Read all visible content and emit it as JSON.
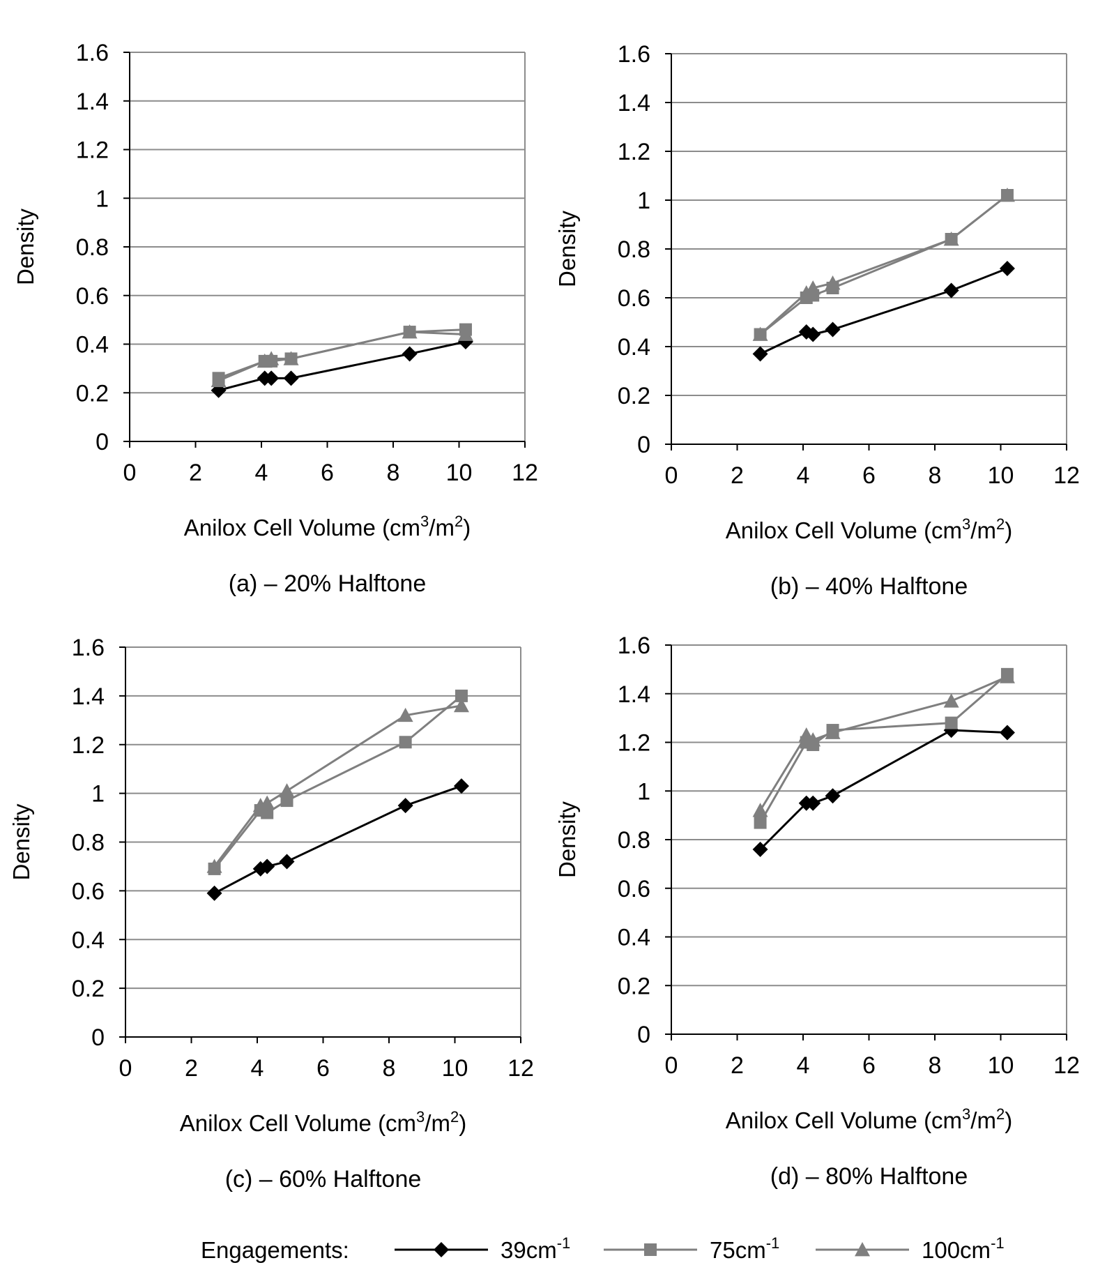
{
  "colors": {
    "series_39": "#000000",
    "series_75": "#7f7f7f",
    "series_100": "#7f7f7f",
    "grid": "#8c8c8c",
    "frame": "#8c8c8c"
  },
  "legend": {
    "label": "Engagements:",
    "items": [
      {
        "text": "39cm",
        "sup": "-1",
        "marker": "diamond",
        "color": "#000000"
      },
      {
        "text": "75cm",
        "sup": "-1",
        "marker": "square",
        "color": "#7f7f7f"
      },
      {
        "text": "100cm",
        "sup": "-1",
        "marker": "triangle",
        "color": "#7f7f7f"
      }
    ]
  },
  "chart_data": [
    {
      "type": "line",
      "caption": "(a) – 20% Halftone",
      "xlabel": "Anilox Cell Volume (cm3/m2)",
      "ylabel": "Density",
      "xlim": [
        0,
        12
      ],
      "ylim": [
        0,
        1.6
      ],
      "xticks": [
        "0",
        "2",
        "4",
        "6",
        "8",
        "10",
        "12"
      ],
      "yticks": [
        "0",
        "0.2",
        "0.4",
        "0.6",
        "0.8",
        "1",
        "1.2",
        "1.4",
        "1.6"
      ],
      "grid": true,
      "series": [
        {
          "name": "39cm-1",
          "marker": "diamond",
          "x": [
            2.7,
            4.1,
            4.3,
            4.9,
            8.5,
            10.2
          ],
          "y": [
            0.21,
            0.26,
            0.26,
            0.26,
            0.36,
            0.41
          ]
        },
        {
          "name": "75cm-1",
          "marker": "square",
          "x": [
            2.7,
            4.1,
            4.3,
            4.9,
            8.5,
            10.2
          ],
          "y": [
            0.26,
            0.33,
            0.33,
            0.34,
            0.45,
            0.46
          ]
        },
        {
          "name": "100cm-1",
          "marker": "triangle",
          "x": [
            2.7,
            4.1,
            4.3,
            4.9,
            8.5,
            10.2
          ],
          "y": [
            0.25,
            0.33,
            0.34,
            0.34,
            0.45,
            0.44
          ]
        }
      ]
    },
    {
      "type": "line",
      "caption": "(b) – 40% Halftone",
      "xlabel": "Anilox Cell Volume (cm3/m2)",
      "ylabel": "Density",
      "xlim": [
        0,
        12
      ],
      "ylim": [
        0,
        1.6
      ],
      "xticks": [
        "0",
        "2",
        "4",
        "6",
        "8",
        "10",
        "12"
      ],
      "yticks": [
        "0",
        "0.2",
        "0.4",
        "0.6",
        "0.8",
        "1",
        "1.2",
        "1.4",
        "1.6"
      ],
      "grid": true,
      "series": [
        {
          "name": "39cm-1",
          "marker": "diamond",
          "x": [
            2.7,
            4.1,
            4.3,
            4.9,
            8.5,
            10.2
          ],
          "y": [
            0.37,
            0.46,
            0.45,
            0.47,
            0.63,
            0.72
          ]
        },
        {
          "name": "75cm-1",
          "marker": "square",
          "x": [
            2.7,
            4.1,
            4.3,
            4.9,
            8.5,
            10.2
          ],
          "y": [
            0.45,
            0.6,
            0.61,
            0.64,
            0.84,
            1.02
          ]
        },
        {
          "name": "100cm-1",
          "marker": "triangle",
          "x": [
            2.7,
            4.1,
            4.3,
            4.9,
            8.5,
            10.2
          ],
          "y": [
            0.45,
            0.62,
            0.64,
            0.66,
            0.84,
            1.02
          ]
        }
      ]
    },
    {
      "type": "line",
      "caption": "(c) – 60% Halftone",
      "xlabel": "Anilox Cell Volume (cm3/m2)",
      "ylabel": "Density",
      "xlim": [
        0,
        12
      ],
      "ylim": [
        0,
        1.6
      ],
      "xticks": [
        "0",
        "2",
        "4",
        "6",
        "8",
        "10",
        "12"
      ],
      "yticks": [
        "0",
        "0.2",
        "0.4",
        "0.6",
        "0.8",
        "1",
        "1.2",
        "1.4",
        "1.6"
      ],
      "grid": true,
      "series": [
        {
          "name": "39cm-1",
          "marker": "diamond",
          "x": [
            2.7,
            4.1,
            4.3,
            4.9,
            8.5,
            10.2
          ],
          "y": [
            0.59,
            0.69,
            0.7,
            0.72,
            0.95,
            1.03
          ]
        },
        {
          "name": "75cm-1",
          "marker": "square",
          "x": [
            2.7,
            4.1,
            4.3,
            4.9,
            8.5,
            10.2
          ],
          "y": [
            0.69,
            0.93,
            0.92,
            0.97,
            1.21,
            1.4
          ]
        },
        {
          "name": "100cm-1",
          "marker": "triangle",
          "x": [
            2.7,
            4.1,
            4.3,
            4.9,
            8.5,
            10.2
          ],
          "y": [
            0.7,
            0.95,
            0.96,
            1.01,
            1.32,
            1.36
          ]
        }
      ]
    },
    {
      "type": "line",
      "caption": "(d) – 80% Halftone",
      "xlabel": "Anilox Cell Volume (cm3/m2)",
      "ylabel": "Density",
      "xlim": [
        0,
        12
      ],
      "ylim": [
        0,
        1.6
      ],
      "xticks": [
        "0",
        "2",
        "4",
        "6",
        "8",
        "10",
        "12"
      ],
      "yticks": [
        "0",
        "0.2",
        "0.4",
        "0.6",
        "0.8",
        "1",
        "1.2",
        "1.4",
        "1.6"
      ],
      "grid": true,
      "series": [
        {
          "name": "39cm-1",
          "marker": "diamond",
          "x": [
            2.7,
            4.1,
            4.3,
            4.9,
            8.5,
            10.2
          ],
          "y": [
            0.76,
            0.95,
            0.95,
            0.98,
            1.25,
            1.24
          ]
        },
        {
          "name": "75cm-1",
          "marker": "square",
          "x": [
            2.7,
            4.1,
            4.3,
            4.9,
            8.5,
            10.2
          ],
          "y": [
            0.87,
            1.2,
            1.19,
            1.25,
            1.28,
            1.48
          ]
        },
        {
          "name": "100cm-1",
          "marker": "triangle",
          "x": [
            2.7,
            4.1,
            4.3,
            4.9,
            8.5,
            10.2
          ],
          "y": [
            0.92,
            1.23,
            1.21,
            1.24,
            1.37,
            1.47
          ]
        }
      ]
    }
  ]
}
